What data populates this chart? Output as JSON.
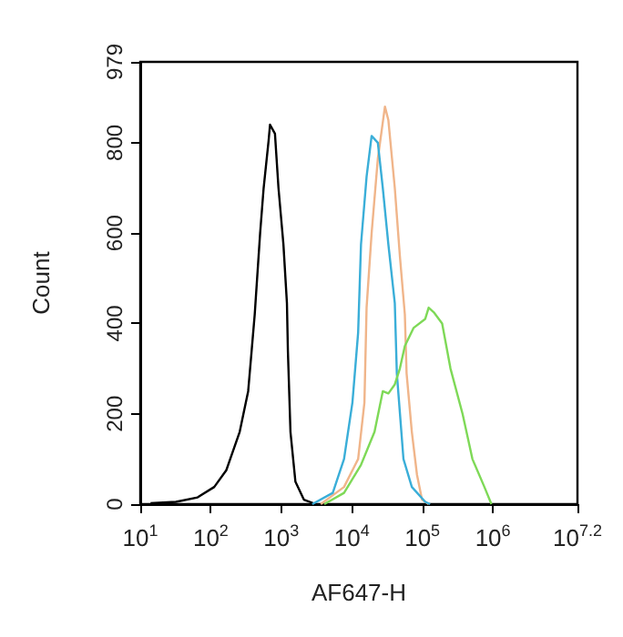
{
  "chart_data": {
    "type": "line",
    "xlabel": "AF647-H",
    "ylabel": "Count",
    "log": "x",
    "grid": false,
    "marker": "none",
    "line_style": "solid",
    "xlim": [
      10,
      15848932
    ],
    "ylim": [
      0,
      979
    ],
    "xticks": [
      {
        "value": 10,
        "label": "10$^{1}$"
      },
      {
        "value": 100,
        "label": "10$^{2}$"
      },
      {
        "value": 1000,
        "label": "10$^{3}$"
      },
      {
        "value": 10000,
        "label": "10$^{4}$"
      },
      {
        "value": 100000,
        "label": "10$^{5}$"
      },
      {
        "value": 1000000,
        "label": "10$^{6}$"
      },
      {
        "value": 15848932,
        "label": "10$^{7.2}$"
      }
    ],
    "yticks": [
      0,
      200,
      400,
      600,
      800,
      979
    ],
    "series": [
      {
        "color": "#000000",
        "x": [
          14,
          32,
          65,
          112,
          166,
          257,
          339,
          380,
          420,
          501,
          562,
          661,
          692,
          813,
          912,
          1072,
          1202,
          1240,
          1349,
          1585,
          2089,
          3090
        ],
        "values": [
          2,
          5,
          15,
          38,
          75,
          160,
          250,
          340,
          420,
          600,
          700,
          805,
          840,
          820,
          700,
          575,
          445,
          340,
          160,
          50,
          10,
          0
        ]
      },
      {
        "color": "#f0b58a",
        "x": [
          3630,
          7760,
          12300,
          15100,
          16200,
          19100,
          23400,
          29500,
          33000,
          40700,
          48000,
          56500,
          59800,
          71000,
          84000,
          99000,
          123000
        ],
        "values": [
          0,
          38,
          100,
          225,
          435,
          600,
          765,
          880,
          850,
          700,
          550,
          420,
          290,
          160,
          65,
          10,
          0
        ]
      },
      {
        "color": "#3aaed8",
        "x": [
          2750,
          5370,
          7760,
          10200,
          12300,
          13500,
          16200,
          19100,
          23400,
          27500,
          33000,
          40700,
          43500,
          54000,
          71000,
          110000,
          129000
        ],
        "values": [
          0,
          25,
          100,
          225,
          380,
          575,
          725,
          815,
          800,
          700,
          575,
          445,
          290,
          100,
          38,
          5,
          0
        ]
      },
      {
        "color": "#7ed957",
        "x": [
          4070,
          7760,
          13500,
          21000,
          27500,
          33000,
          40700,
          48000,
          56500,
          75000,
          110000,
          123000,
          145000,
          191000,
          251000,
          372000,
          513000,
          759000,
          955000
        ],
        "values": [
          0,
          25,
          87,
          160,
          250,
          245,
          265,
          300,
          350,
          390,
          410,
          435,
          425,
          400,
          300,
          200,
          100,
          38,
          0
        ]
      }
    ]
  }
}
